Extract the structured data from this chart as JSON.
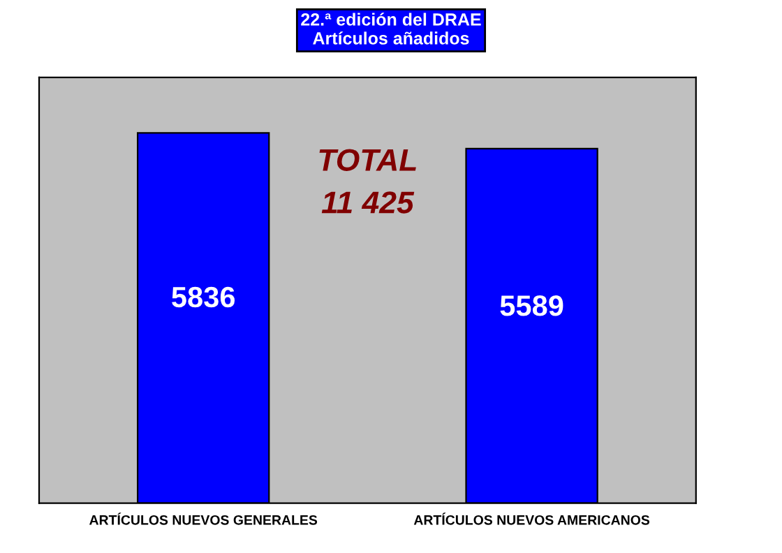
{
  "chart_data": {
    "type": "bar",
    "title": "22.ª edición del DRAE\nArtículos añadidos",
    "categories": [
      "ARTÍCULOS NUEVOS GENERALES",
      "ARTÍCULOS NUEVOS AMERICANOS"
    ],
    "values": [
      5836,
      5589
    ],
    "color": "#0000ff",
    "data_labels": true,
    "grid": false,
    "legend": false,
    "annotations": [
      "TOTAL\n11 425"
    ]
  }
}
